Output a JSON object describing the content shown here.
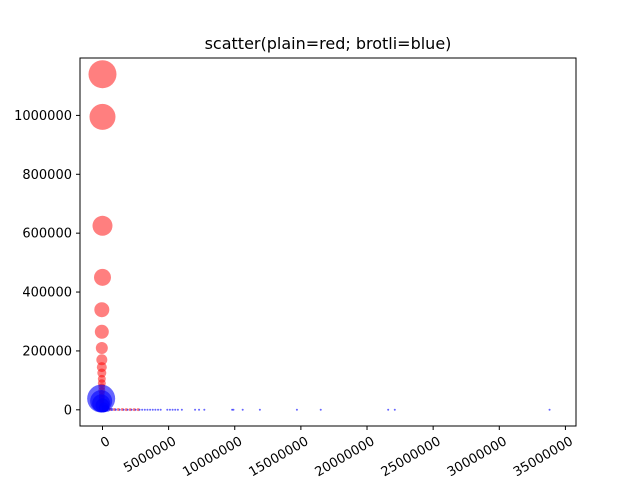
{
  "chart_data": {
    "type": "scatter",
    "title": "scatter(plain=red; brotli=blue)",
    "xlabel": "",
    "ylabel": "",
    "xlim": [
      -1700000,
      35800000
    ],
    "ylim": [
      -55000,
      1195000
    ],
    "xticks": [
      0,
      5000000,
      10000000,
      15000000,
      20000000,
      25000000,
      30000000,
      35000000
    ],
    "yticks": [
      0,
      200000,
      400000,
      600000,
      800000,
      1000000
    ],
    "xtick_labels": [
      "0",
      "5000000",
      "10000000",
      "15000000",
      "20000000",
      "25000000",
      "30000000",
      "35000000"
    ],
    "ytick_labels": [
      "0",
      "200000",
      "400000",
      "600000",
      "800000",
      "1000000"
    ],
    "xtick_rotation_deg": 30,
    "grid": false,
    "series": [
      {
        "color": "#ff0000",
        "alpha": 0.5,
        "points": [
          {
            "x": 0,
            "y": 1140000,
            "size": 14
          },
          {
            "x": 0,
            "y": 995000,
            "size": 13
          },
          {
            "x": 0,
            "y": 625000,
            "size": 10
          },
          {
            "x": 0,
            "y": 450000,
            "size": 8.5
          },
          {
            "x": -50000,
            "y": 340000,
            "size": 7.5
          },
          {
            "x": -50000,
            "y": 265000,
            "size": 7
          },
          {
            "x": -50000,
            "y": 210000,
            "size": 6
          },
          {
            "x": -50000,
            "y": 170000,
            "size": 5.5
          },
          {
            "x": -50000,
            "y": 145000,
            "size": 5
          },
          {
            "x": -50000,
            "y": 125000,
            "size": 4.5
          },
          {
            "x": -50000,
            "y": 105000,
            "size": 4
          },
          {
            "x": -50000,
            "y": 90000,
            "size": 4
          },
          {
            "x": -50000,
            "y": 78000,
            "size": 3.5
          },
          {
            "x": -50000,
            "y": 66000,
            "size": 3.5
          },
          {
            "x": -50000,
            "y": 56000,
            "size": 3
          },
          {
            "x": -50000,
            "y": 46000,
            "size": 3
          },
          {
            "x": -50000,
            "y": 38000,
            "size": 3
          },
          {
            "x": -50000,
            "y": 30000,
            "size": 2.5
          },
          {
            "x": -50000,
            "y": 22000,
            "size": 2.5
          },
          {
            "x": -50000,
            "y": 14000,
            "size": 2
          },
          {
            "x": 300000,
            "y": 2000,
            "size": 1.5
          },
          {
            "x": 600000,
            "y": 1500,
            "size": 1.5
          },
          {
            "x": 900000,
            "y": 1200,
            "size": 1.5
          },
          {
            "x": 1200000,
            "y": 1000,
            "size": 1.5
          },
          {
            "x": 1500000,
            "y": 900,
            "size": 1.5
          },
          {
            "x": 1800000,
            "y": 800,
            "size": 1.5
          },
          {
            "x": 2100000,
            "y": 700,
            "size": 1.5
          },
          {
            "x": 2400000,
            "y": 600,
            "size": 1.5
          },
          {
            "x": 2700000,
            "y": 500,
            "size": 1.5
          }
        ]
      },
      {
        "color": "#0000ff",
        "alpha": 0.6,
        "points": [
          {
            "x": -100000,
            "y": 38000,
            "size": 14
          },
          {
            "x": -100000,
            "y": 30000,
            "size": 11
          },
          {
            "x": -100000,
            "y": 22000,
            "size": 9
          },
          {
            "x": 0,
            "y": 15000,
            "size": 7
          },
          {
            "x": 100000,
            "y": 8000,
            "size": 5
          },
          {
            "x": 200000,
            "y": 4000,
            "size": 3.5
          },
          {
            "x": 400000,
            "y": 2000,
            "size": 2.5
          },
          {
            "x": 700000,
            "y": 1000,
            "size": 1.5
          },
          {
            "x": 1000000,
            "y": 500,
            "size": 1.2
          },
          {
            "x": 1300000,
            "y": 400,
            "size": 1
          },
          {
            "x": 1600000,
            "y": 300,
            "size": 1
          },
          {
            "x": 1900000,
            "y": 300,
            "size": 1
          },
          {
            "x": 2200000,
            "y": 200,
            "size": 1
          },
          {
            "x": 2500000,
            "y": 200,
            "size": 1
          },
          {
            "x": 2800000,
            "y": 200,
            "size": 1
          },
          {
            "x": 3000000,
            "y": 100,
            "size": 1
          },
          {
            "x": 3200000,
            "y": 100,
            "size": 1
          },
          {
            "x": 3400000,
            "y": 100,
            "size": 1
          },
          {
            "x": 3600000,
            "y": 100,
            "size": 1
          },
          {
            "x": 3800000,
            "y": 100,
            "size": 1
          },
          {
            "x": 4000000,
            "y": 100,
            "size": 1
          },
          {
            "x": 4200000,
            "y": 100,
            "size": 1
          },
          {
            "x": 4400000,
            "y": 100,
            "size": 1
          },
          {
            "x": 4900000,
            "y": 100,
            "size": 1
          },
          {
            "x": 5100000,
            "y": 100,
            "size": 1
          },
          {
            "x": 5300000,
            "y": 100,
            "size": 1
          },
          {
            "x": 5500000,
            "y": 100,
            "size": 1
          },
          {
            "x": 5700000,
            "y": 100,
            "size": 1
          },
          {
            "x": 6000000,
            "y": 100,
            "size": 1
          },
          {
            "x": 7000000,
            "y": 100,
            "size": 1
          },
          {
            "x": 7300000,
            "y": 100,
            "size": 1
          },
          {
            "x": 7700000,
            "y": 100,
            "size": 1
          },
          {
            "x": 9800000,
            "y": 100,
            "size": 1
          },
          {
            "x": 9900000,
            "y": 100,
            "size": 1
          },
          {
            "x": 10600000,
            "y": 100,
            "size": 1
          },
          {
            "x": 11900000,
            "y": 100,
            "size": 1
          },
          {
            "x": 14700000,
            "y": 100,
            "size": 1
          },
          {
            "x": 16500000,
            "y": 100,
            "size": 1
          },
          {
            "x": 21600000,
            "y": 100,
            "size": 1
          },
          {
            "x": 22100000,
            "y": 100,
            "size": 1
          },
          {
            "x": 33800000,
            "y": 100,
            "size": 1
          }
        ]
      }
    ]
  }
}
